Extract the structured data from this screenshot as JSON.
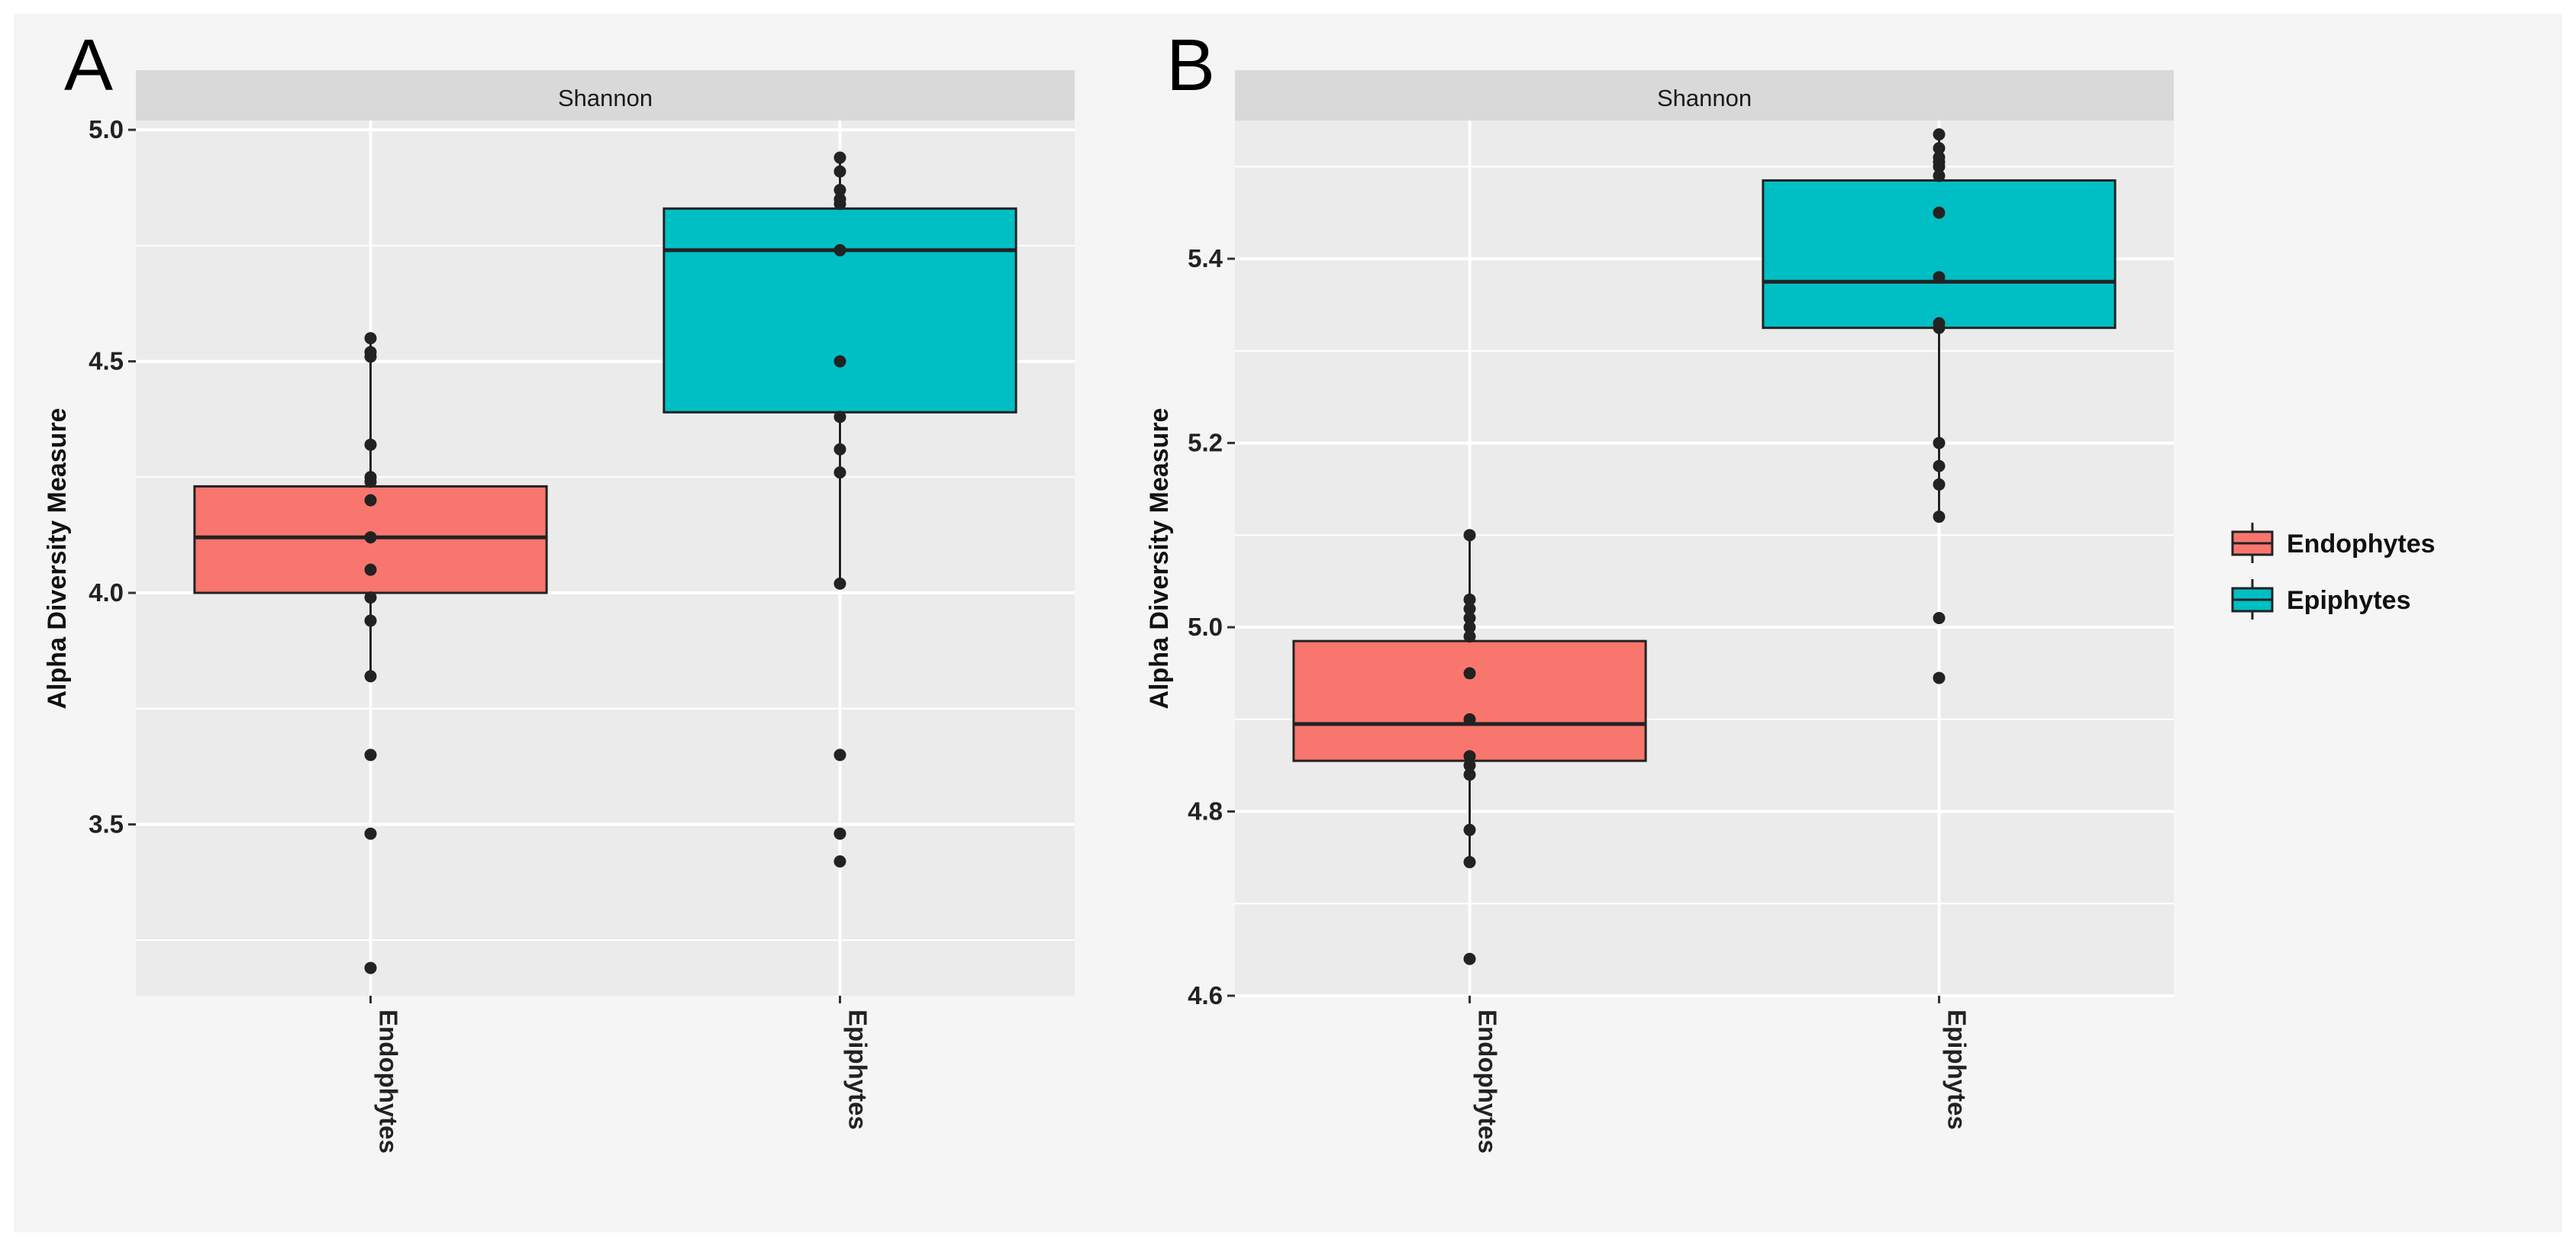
{
  "figure": {
    "background": "#f5f5f5",
    "panel_background": "#ebebeb",
    "grid_color": "#ffffff",
    "strip_background": "#d9d9d9",
    "point_color": "#222222",
    "box_stroke": "#222222"
  },
  "legend": {
    "items": [
      {
        "label": "Endophytes",
        "color": "#F8766D"
      },
      {
        "label": "Epiphytes",
        "color": "#00BFC4"
      }
    ]
  },
  "chart_data": [
    {
      "type": "boxplot",
      "panel_label": "A",
      "title": "Shannon",
      "xlabel": "",
      "ylabel": "Alpha Diversity Measure",
      "categories": [
        "Endophytes",
        "Epiphytes"
      ],
      "ylim": [
        3.13,
        5.02
      ],
      "yticks": [
        3.5,
        4.0,
        4.5,
        5.0
      ],
      "ytick_labels": [
        "3.5",
        "4.0",
        "4.5",
        "5.0"
      ],
      "boxes": [
        {
          "category": "Endophytes",
          "color": "#F8766D",
          "q1": 4.0,
          "median": 4.12,
          "q3": 4.23,
          "whisker_low": 3.82,
          "whisker_high": 4.55,
          "points": [
            4.55,
            4.52,
            4.51,
            4.32,
            4.25,
            4.24,
            4.2,
            4.12,
            4.05,
            3.99,
            3.94,
            3.82,
            3.65,
            3.48,
            3.19
          ]
        },
        {
          "category": "Epiphytes",
          "color": "#00BFC4",
          "q1": 4.39,
          "median": 4.74,
          "q3": 4.83,
          "whisker_low": 4.02,
          "whisker_high": 4.94,
          "points": [
            4.94,
            4.91,
            4.87,
            4.85,
            4.84,
            4.74,
            4.5,
            4.38,
            4.31,
            4.26,
            4.02,
            3.65,
            3.48,
            3.42
          ]
        }
      ]
    },
    {
      "type": "boxplot",
      "panel_label": "B",
      "title": "Shannon",
      "xlabel": "",
      "ylabel": "Alpha Diversity Measure",
      "categories": [
        "Endophytes",
        "Epiphytes"
      ],
      "ylim": [
        4.6,
        5.55
      ],
      "yticks": [
        4.6,
        4.8,
        5.0,
        5.2,
        5.4
      ],
      "ytick_labels": [
        "4.6",
        "4.8",
        "5.0",
        "5.2",
        "5.4"
      ],
      "boxes": [
        {
          "category": "Endophytes",
          "color": "#F8766D",
          "q1": 4.855,
          "median": 4.895,
          "q3": 4.985,
          "whisker_low": 4.745,
          "whisker_high": 5.1,
          "points": [
            5.1,
            5.03,
            5.02,
            5.01,
            5.0,
            4.99,
            4.95,
            4.9,
            4.86,
            4.85,
            4.84,
            4.78,
            4.745,
            4.64
          ]
        },
        {
          "category": "Epiphytes",
          "color": "#00BFC4",
          "q1": 5.325,
          "median": 5.375,
          "q3": 5.485,
          "whisker_low": 5.12,
          "whisker_high": 5.535,
          "points": [
            5.535,
            5.52,
            5.51,
            5.505,
            5.5,
            5.49,
            5.45,
            5.38,
            5.33,
            5.325,
            5.2,
            5.175,
            5.155,
            5.12,
            5.01,
            4.945
          ]
        }
      ]
    }
  ]
}
